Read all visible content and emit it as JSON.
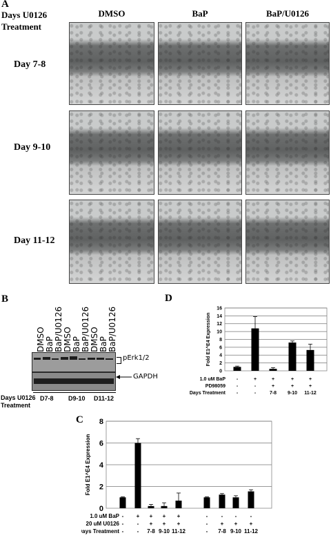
{
  "panelA": {
    "letter": "A",
    "corner_label_line1": "Days U0126",
    "corner_label_line2": "Treatment",
    "columns": [
      "DMSO",
      "BaP",
      "BaP/U0126"
    ],
    "rows": [
      "Day 7-8",
      "Day 9-10",
      "Day 11-12"
    ]
  },
  "panelB": {
    "letter": "B",
    "lanes": [
      "DMSO",
      "BaP",
      "BaP/U0126",
      "DMSO",
      "BaP",
      "BaP/U0126",
      "DMSO",
      "BaP",
      "BaP/U0126"
    ],
    "band_labels": [
      "pErk1/2",
      "GAPDH"
    ],
    "days_label_line1": "Days U0126",
    "days_label_line2": "Treatment",
    "groups": [
      "D7-8",
      "D9-10",
      "D11-12"
    ]
  },
  "panelD": {
    "letter": "D",
    "row_labels": [
      "1.0 uM BaP",
      "PD98059",
      "Days Treatment"
    ],
    "rows": [
      [
        "-",
        "+",
        "+",
        "+",
        "+"
      ],
      [
        "-",
        "-",
        "+",
        "+",
        "+"
      ],
      [
        "-",
        "-",
        "7-8",
        "9-10",
        "11-12"
      ]
    ]
  },
  "panelC": {
    "letter": "C",
    "row_labels": [
      "1.0 uM BaP",
      "20 uM U0126",
      "Days Treatment"
    ],
    "rows": [
      [
        "-",
        "+",
        "+",
        "+",
        "+",
        "-",
        "-",
        "-",
        "-"
      ],
      [
        "-",
        "-",
        "+",
        "+",
        "+",
        "-",
        "+",
        "+",
        "+"
      ],
      [
        "-",
        "-",
        "7-8",
        "9-10",
        "11-12",
        "-",
        "7-8",
        "9-10",
        "11-12"
      ]
    ]
  },
  "chart_data": [
    {
      "id": "D",
      "type": "bar",
      "ylabel": "Fold E1^E4 Expression",
      "ylim": [
        0,
        16
      ],
      "yticks": [
        0,
        2,
        4,
        6,
        8,
        10,
        12,
        14,
        16
      ],
      "values": [
        1,
        10.8,
        0.5,
        7.2,
        5.3
      ],
      "errors": [
        0.2,
        3.0,
        0.3,
        0.4,
        1.5
      ],
      "grid": true
    },
    {
      "id": "C",
      "type": "bar",
      "ylabel": "Fold E1^E4 Expression",
      "ylim": [
        0,
        8
      ],
      "yticks": [
        0,
        2,
        4,
        6,
        8
      ],
      "values": [
        1,
        6,
        0.2,
        0.2,
        0.7,
        1,
        1.25,
        1,
        1.55
      ],
      "errors": [
        0.05,
        0.4,
        0.15,
        0.3,
        0.7,
        0.05,
        0.1,
        0.15,
        0.15
      ],
      "grid": true
    }
  ]
}
